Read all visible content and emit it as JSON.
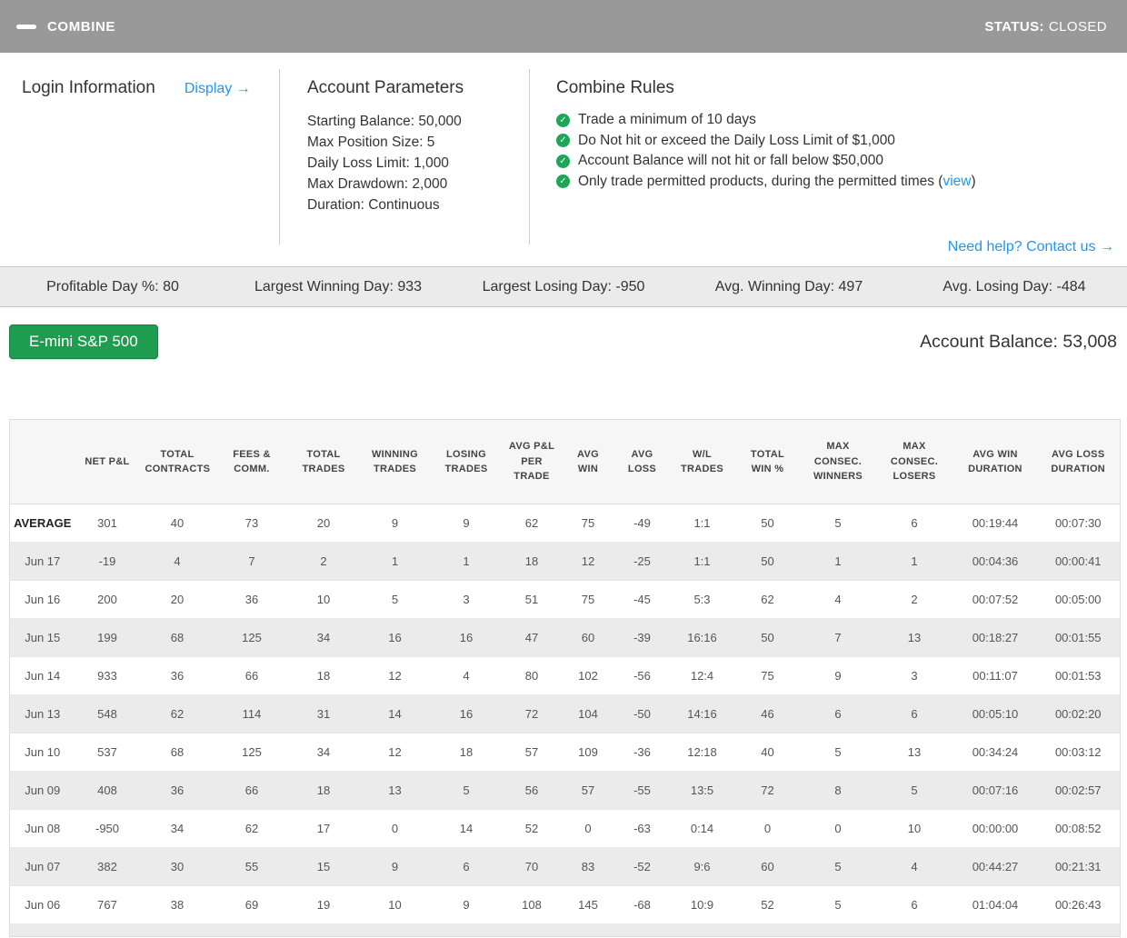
{
  "colors": {
    "titlebar_bg": "#999999",
    "link_blue": "#2196f3",
    "check_green": "#1da558",
    "button_green": "#1e9d50",
    "button_green_border": "#17813f",
    "stripe_gray": "#ebebeb"
  },
  "header": {
    "title": "COMBINE",
    "status_label": "STATUS:",
    "status_value": "CLOSED"
  },
  "panel": {
    "login": {
      "title": "Login Information",
      "display_link": "Display →"
    },
    "account_parameters": {
      "title": "Account Parameters",
      "items": [
        "Starting Balance: 50,000",
        "Max Position Size: 5",
        "Daily Loss Limit: 1,000",
        "Max Drawdown: 2,000",
        "Duration: Continuous"
      ]
    },
    "combine_rules": {
      "title": "Combine Rules",
      "items": [
        {
          "prefix": "Trade a minimum of 10 days",
          "link": "",
          "suffix": ""
        },
        {
          "prefix": "Do Not hit or exceed the Daily Loss Limit of $1,000",
          "link": "",
          "suffix": ""
        },
        {
          "prefix": "Account Balance will not hit or fall below $50,000",
          "link": "",
          "suffix": ""
        },
        {
          "prefix": "Only trade permitted products, during the permitted times (",
          "link": "view",
          "suffix": ")"
        }
      ]
    },
    "help_link": "Need help? Contact us →"
  },
  "stats": [
    {
      "label": "Profitable Day %:",
      "value": "80"
    },
    {
      "label": "Largest Winning Day:",
      "value": "933"
    },
    {
      "label": "Largest Losing Day:",
      "value": "-950"
    },
    {
      "label": "Avg. Winning Day:",
      "value": "497"
    },
    {
      "label": "Avg. Losing Day:",
      "value": "-484"
    }
  ],
  "product": {
    "button_label": "E-mini S&P 500",
    "balance_label": "Account Balance:",
    "balance_value": "53,008"
  },
  "table": {
    "columns": [
      "",
      "NET P&L",
      "TOTAL CONTRACTS",
      "FEES & COMM.",
      "TOTAL TRADES",
      "WINNING TRADES",
      "LOSING TRADES",
      "AVG P&L PER TRADE",
      "AVG WIN",
      "AVG LOSS",
      "W/L TRADES",
      "TOTAL WIN %",
      "MAX CONSEC. WINNERS",
      "MAX CONSEC. LOSERS",
      "AVG WIN DURATION",
      "AVG LOSS DURATION"
    ],
    "rows": [
      {
        "label": "AVERAGE",
        "values": [
          "301",
          "40",
          "73",
          "20",
          "9",
          "9",
          "62",
          "75",
          "-49",
          "1:1",
          "50",
          "5",
          "6",
          "00:19:44",
          "00:07:30"
        ]
      },
      {
        "label": "Jun 17",
        "values": [
          "-19",
          "4",
          "7",
          "2",
          "1",
          "1",
          "18",
          "12",
          "-25",
          "1:1",
          "50",
          "1",
          "1",
          "00:04:36",
          "00:00:41"
        ]
      },
      {
        "label": "Jun 16",
        "values": [
          "200",
          "20",
          "36",
          "10",
          "5",
          "3",
          "51",
          "75",
          "-45",
          "5:3",
          "62",
          "4",
          "2",
          "00:07:52",
          "00:05:00"
        ]
      },
      {
        "label": "Jun 15",
        "values": [
          "199",
          "68",
          "125",
          "34",
          "16",
          "16",
          "47",
          "60",
          "-39",
          "16:16",
          "50",
          "7",
          "13",
          "00:18:27",
          "00:01:55"
        ]
      },
      {
        "label": "Jun 14",
        "values": [
          "933",
          "36",
          "66",
          "18",
          "12",
          "4",
          "80",
          "102",
          "-56",
          "12:4",
          "75",
          "9",
          "3",
          "00:11:07",
          "00:01:53"
        ]
      },
      {
        "label": "Jun 13",
        "values": [
          "548",
          "62",
          "114",
          "31",
          "14",
          "16",
          "72",
          "104",
          "-50",
          "14:16",
          "46",
          "6",
          "6",
          "00:05:10",
          "00:02:20"
        ]
      },
      {
        "label": "Jun 10",
        "values": [
          "537",
          "68",
          "125",
          "34",
          "12",
          "18",
          "57",
          "109",
          "-36",
          "12:18",
          "40",
          "5",
          "13",
          "00:34:24",
          "00:03:12"
        ]
      },
      {
        "label": "Jun 09",
        "values": [
          "408",
          "36",
          "66",
          "18",
          "13",
          "5",
          "56",
          "57",
          "-55",
          "13:5",
          "72",
          "8",
          "5",
          "00:07:16",
          "00:02:57"
        ]
      },
      {
        "label": "Jun 08",
        "values": [
          "-950",
          "34",
          "62",
          "17",
          "0",
          "14",
          "52",
          "0",
          "-63",
          "0:14",
          "0",
          "0",
          "10",
          "00:00:00",
          "00:08:52"
        ]
      },
      {
        "label": "Jun 07",
        "values": [
          "382",
          "30",
          "55",
          "15",
          "9",
          "6",
          "70",
          "83",
          "-52",
          "9:6",
          "60",
          "5",
          "4",
          "00:44:27",
          "00:21:31"
        ]
      },
      {
        "label": "Jun 06",
        "values": [
          "767",
          "38",
          "69",
          "19",
          "10",
          "9",
          "108",
          "145",
          "-68",
          "10:9",
          "52",
          "5",
          "6",
          "01:04:04",
          "00:26:43"
        ]
      }
    ]
  }
}
